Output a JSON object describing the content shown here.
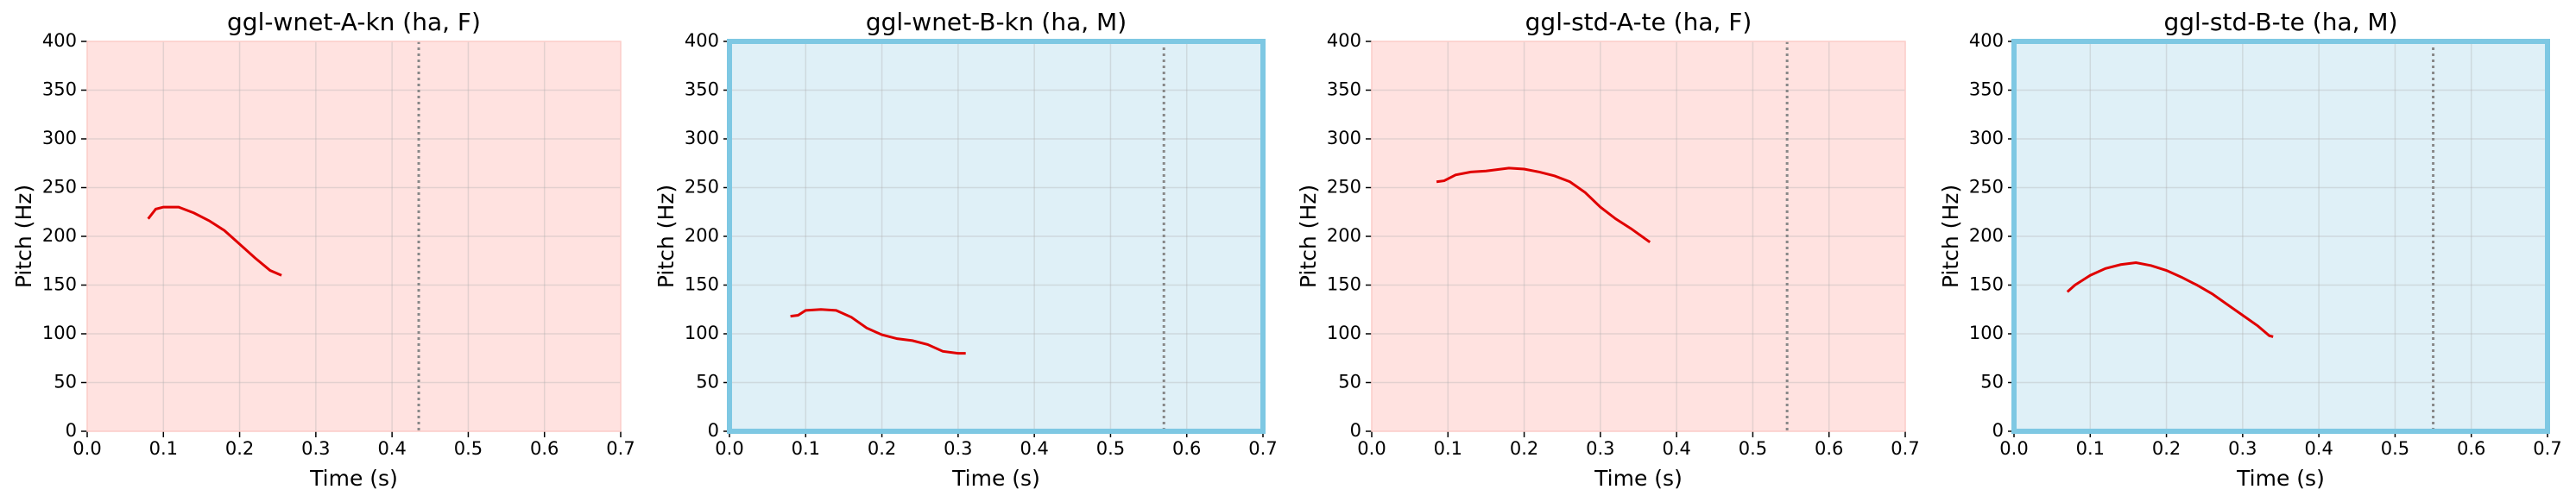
{
  "chart_data": [
    {
      "type": "line",
      "title": "ggl-wnet-A-kn (ha, F)",
      "x_label": "Time (s)",
      "y_label": "Pitch (Hz)",
      "x": [
        0.08,
        0.09,
        0.1,
        0.12,
        0.14,
        0.16,
        0.18,
        0.2,
        0.22,
        0.24,
        0.255
      ],
      "values": [
        218,
        228,
        230,
        230,
        224,
        216,
        206,
        192,
        178,
        165,
        160
      ],
      "color": "#e00000",
      "background": "#ffe2e0",
      "border": null,
      "vline_x": 0.435,
      "xlim": [
        0,
        0.7
      ],
      "ylim": [
        0,
        400
      ],
      "xticks": [
        {
          "value": 0,
          "label": "0.0"
        },
        {
          "value": 0.1,
          "label": "0.1"
        },
        {
          "value": 0.2,
          "label": "0.2"
        },
        {
          "value": 0.3,
          "label": "0.3"
        },
        {
          "value": 0.4,
          "label": "0.4"
        },
        {
          "value": 0.5,
          "label": "0.5"
        },
        {
          "value": 0.6,
          "label": "0.6"
        },
        {
          "value": 0.7,
          "label": "0.7"
        }
      ],
      "yticks": [
        0,
        50,
        100,
        150,
        200,
        250,
        300,
        350,
        400
      ],
      "grid": true
    },
    {
      "type": "line",
      "title": "ggl-wnet-B-kn (ha, M)",
      "x_label": "Time (s)",
      "y_label": "Pitch (Hz)",
      "x": [
        0.08,
        0.09,
        0.1,
        0.12,
        0.14,
        0.16,
        0.18,
        0.2,
        0.22,
        0.24,
        0.26,
        0.28,
        0.3,
        0.31
      ],
      "values": [
        118,
        119,
        124,
        125,
        124,
        117,
        106,
        99,
        95,
        93,
        89,
        82,
        80,
        80
      ],
      "color": "#e00000",
      "background": "#dff0f7",
      "border": "#7ec8e3",
      "vline_x": 0.57,
      "xlim": [
        0,
        0.7
      ],
      "ylim": [
        0,
        400
      ],
      "xticks": [
        {
          "value": 0,
          "label": "0.0"
        },
        {
          "value": 0.1,
          "label": "0.1"
        },
        {
          "value": 0.2,
          "label": "0.2"
        },
        {
          "value": 0.3,
          "label": "0.3"
        },
        {
          "value": 0.4,
          "label": "0.4"
        },
        {
          "value": 0.5,
          "label": "0.5"
        },
        {
          "value": 0.6,
          "label": "0.6"
        },
        {
          "value": 0.7,
          "label": "0.7"
        }
      ],
      "yticks": [
        0,
        50,
        100,
        150,
        200,
        250,
        300,
        350,
        400
      ],
      "grid": true
    },
    {
      "type": "line",
      "title": "ggl-std-A-te (ha, F)",
      "x_label": "Time (s)",
      "y_label": "Pitch (Hz)",
      "x": [
        0.085,
        0.095,
        0.11,
        0.13,
        0.15,
        0.18,
        0.2,
        0.22,
        0.24,
        0.26,
        0.28,
        0.3,
        0.32,
        0.34,
        0.365
      ],
      "values": [
        256,
        257,
        263,
        266,
        267,
        270,
        269,
        266,
        262,
        256,
        245,
        230,
        218,
        208,
        194
      ],
      "color": "#e00000",
      "background": "#ffe2e0",
      "border": null,
      "vline_x": 0.545,
      "xlim": [
        0,
        0.7
      ],
      "ylim": [
        0,
        400
      ],
      "xticks": [
        {
          "value": 0,
          "label": "0.0"
        },
        {
          "value": 0.1,
          "label": "0.1"
        },
        {
          "value": 0.2,
          "label": "0.2"
        },
        {
          "value": 0.3,
          "label": "0.3"
        },
        {
          "value": 0.4,
          "label": "0.4"
        },
        {
          "value": 0.5,
          "label": "0.5"
        },
        {
          "value": 0.6,
          "label": "0.6"
        },
        {
          "value": 0.7,
          "label": "0.7"
        }
      ],
      "yticks": [
        0,
        50,
        100,
        150,
        200,
        250,
        300,
        350,
        400
      ],
      "grid": true
    },
    {
      "type": "line",
      "title": "ggl-std-B-te (ha, M)",
      "x_label": "Time (s)",
      "y_label": "Pitch (Hz)",
      "x": [
        0.07,
        0.08,
        0.1,
        0.12,
        0.14,
        0.16,
        0.18,
        0.2,
        0.22,
        0.24,
        0.26,
        0.28,
        0.3,
        0.32,
        0.335,
        0.34
      ],
      "values": [
        143,
        150,
        160,
        167,
        171,
        173,
        170,
        165,
        158,
        150,
        141,
        130,
        119,
        108,
        98,
        97
      ],
      "color": "#e00000",
      "background": "#dff0f7",
      "border": "#7ec8e3",
      "vline_x": 0.55,
      "xlim": [
        0,
        0.7
      ],
      "ylim": [
        0,
        400
      ],
      "xticks": [
        {
          "value": 0,
          "label": "0.0"
        },
        {
          "value": 0.1,
          "label": "0.1"
        },
        {
          "value": 0.2,
          "label": "0.2"
        },
        {
          "value": 0.3,
          "label": "0.3"
        },
        {
          "value": 0.4,
          "label": "0.4"
        },
        {
          "value": 0.5,
          "label": "0.5"
        },
        {
          "value": 0.6,
          "label": "0.6"
        },
        {
          "value": 0.7,
          "label": "0.7"
        }
      ],
      "yticks": [
        0,
        50,
        100,
        150,
        200,
        250,
        300,
        350,
        400
      ],
      "grid": true
    }
  ]
}
